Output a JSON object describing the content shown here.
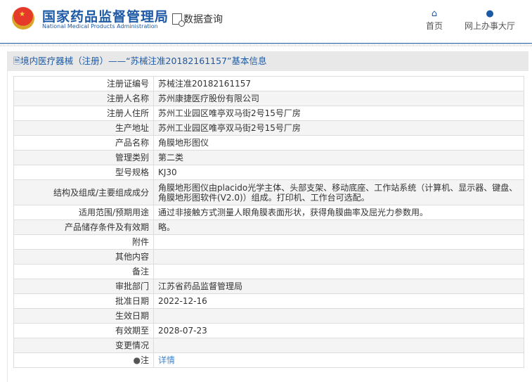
{
  "header": {
    "brand_cn": "国家药品监督管理局",
    "brand_en": "National Medical Products Administration",
    "query_label": "数据查询",
    "nav": [
      {
        "label": "首页",
        "icon": "home-icon"
      },
      {
        "label": "网上办事大厅",
        "icon": "user-icon"
      }
    ]
  },
  "panel": {
    "title": "境内医疗器械（注册）——“苏械注准20182161157”基本信息"
  },
  "rows": [
    {
      "label": "注册证编号",
      "value": "苏械注准20182161157"
    },
    {
      "label": "注册人名称",
      "value": "苏州康捷医疗股份有限公司"
    },
    {
      "label": "注册人住所",
      "value": "苏州工业园区唯亭双马街2号15号厂房"
    },
    {
      "label": "生产地址",
      "value": "苏州工业园区唯亭双马街2号15号厂房"
    },
    {
      "label": "产品名称",
      "value": "角膜地形图仪"
    },
    {
      "label": "管理类别",
      "value": "第二类"
    },
    {
      "label": "型号规格",
      "value": "KJ30"
    },
    {
      "label": "结构及组成/主要组成成分",
      "value": "角膜地形图仪由placido光学主体、头部支架、移动底座、工作站系统（计算机、显示器、键盘、角膜地形图软件(V2.0)）组成。打印机、工作台可选配。"
    },
    {
      "label": "适用范围/预期用途",
      "value": "通过非接触方式测量人眼角膜表面形状，获得角膜曲率及屈光力参数用。"
    },
    {
      "label": "产品储存条件及有效期",
      "value": "略。"
    },
    {
      "label": "附件",
      "value": ""
    },
    {
      "label": "其他内容",
      "value": ""
    },
    {
      "label": "备注",
      "value": ""
    },
    {
      "label": "审批部门",
      "value": "江苏省药品监督管理局"
    },
    {
      "label": "批准日期",
      "value": "2022-12-16"
    },
    {
      "label": "生效日期",
      "value": ""
    },
    {
      "label": "有效期至",
      "value": "2028-07-23"
    },
    {
      "label": "变更情况",
      "value": ""
    }
  ],
  "note": {
    "label": "注",
    "link": "详情"
  }
}
